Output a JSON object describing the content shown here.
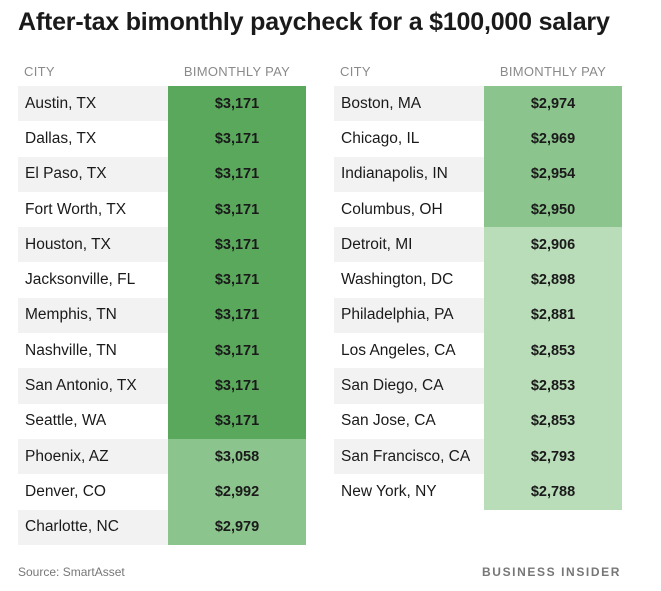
{
  "title": "After-tax bimonthly paycheck for a $100,000 salary",
  "source": "Source: SmartAsset",
  "brand": "BUSINESS INSIDER",
  "colors": {
    "shade_dark": "#5aa85c",
    "shade_mid": "#8cc48d",
    "shade_light": "#b9dcb9"
  },
  "chart_data": {
    "type": "table",
    "columns": [
      "CITY",
      "BIMONTHLY PAY"
    ],
    "tables": [
      {
        "rows": [
          {
            "city": "Austin, TX",
            "pay": "$3,171",
            "value": 3171,
            "shade": "dark"
          },
          {
            "city": "Dallas, TX",
            "pay": "$3,171",
            "value": 3171,
            "shade": "dark"
          },
          {
            "city": "El Paso, TX",
            "pay": "$3,171",
            "value": 3171,
            "shade": "dark"
          },
          {
            "city": "Fort Worth, TX",
            "pay": "$3,171",
            "value": 3171,
            "shade": "dark"
          },
          {
            "city": "Houston, TX",
            "pay": "$3,171",
            "value": 3171,
            "shade": "dark"
          },
          {
            "city": "Jacksonville, FL",
            "pay": "$3,171",
            "value": 3171,
            "shade": "dark"
          },
          {
            "city": "Memphis, TN",
            "pay": "$3,171",
            "value": 3171,
            "shade": "dark"
          },
          {
            "city": "Nashville, TN",
            "pay": "$3,171",
            "value": 3171,
            "shade": "dark"
          },
          {
            "city": "San Antonio, TX",
            "pay": "$3,171",
            "value": 3171,
            "shade": "dark"
          },
          {
            "city": "Seattle, WA",
            "pay": "$3,171",
            "value": 3171,
            "shade": "dark"
          },
          {
            "city": "Phoenix, AZ",
            "pay": "$3,058",
            "value": 3058,
            "shade": "mid"
          },
          {
            "city": "Denver, CO",
            "pay": "$2,992",
            "value": 2992,
            "shade": "mid"
          },
          {
            "city": "Charlotte, NC",
            "pay": "$2,979",
            "value": 2979,
            "shade": "mid"
          }
        ]
      },
      {
        "rows": [
          {
            "city": "Boston, MA",
            "pay": "$2,974",
            "value": 2974,
            "shade": "mid"
          },
          {
            "city": "Chicago, IL",
            "pay": "$2,969",
            "value": 2969,
            "shade": "mid"
          },
          {
            "city": "Indianapolis, IN",
            "pay": "$2,954",
            "value": 2954,
            "shade": "mid"
          },
          {
            "city": "Columbus, OH",
            "pay": "$2,950",
            "value": 2950,
            "shade": "mid"
          },
          {
            "city": "Detroit, MI",
            "pay": "$2,906",
            "value": 2906,
            "shade": "light"
          },
          {
            "city": "Washington, DC",
            "pay": "$2,898",
            "value": 2898,
            "shade": "light"
          },
          {
            "city": "Philadelphia, PA",
            "pay": "$2,881",
            "value": 2881,
            "shade": "light"
          },
          {
            "city": "Los Angeles, CA",
            "pay": "$2,853",
            "value": 2853,
            "shade": "light"
          },
          {
            "city": "San Diego, CA",
            "pay": "$2,853",
            "value": 2853,
            "shade": "light"
          },
          {
            "city": "San Jose, CA",
            "pay": "$2,853",
            "value": 2853,
            "shade": "light"
          },
          {
            "city": "San Francisco, CA",
            "pay": "$2,793",
            "value": 2793,
            "shade": "light"
          },
          {
            "city": "New York, NY",
            "pay": "$2,788",
            "value": 2788,
            "shade": "light"
          }
        ]
      }
    ]
  }
}
